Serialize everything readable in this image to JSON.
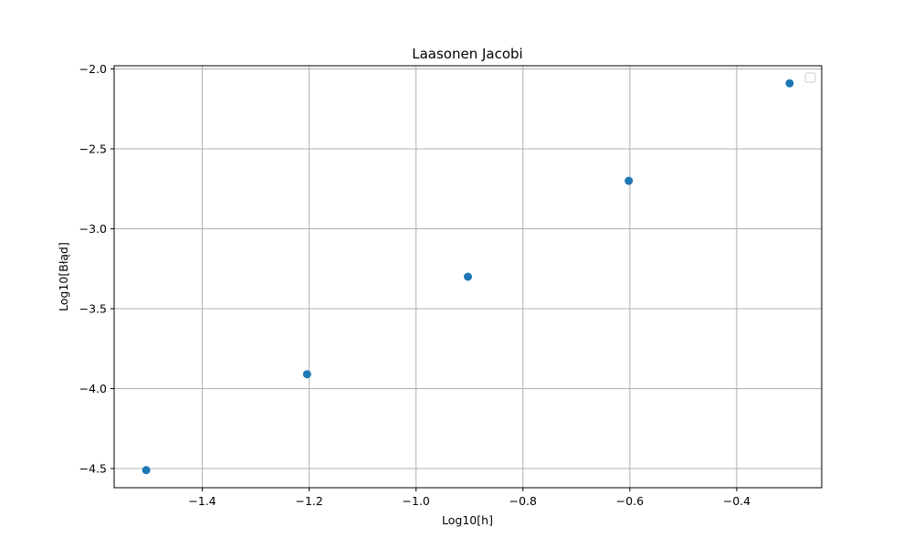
{
  "chart_data": {
    "type": "scatter",
    "title": "Laasonen Jacobi",
    "xlabel": "Log10[h]",
    "ylabel": "Log10[Błąd]",
    "x": [
      -1.505,
      -1.204,
      -0.903,
      -0.602,
      -0.301
    ],
    "y": [
      -4.51,
      -3.91,
      -3.3,
      -2.7,
      -2.09
    ],
    "xlim": [
      -1.565,
      -0.241
    ],
    "ylim": [
      -4.62,
      -1.98
    ],
    "xticks": [
      -1.4,
      -1.2,
      -1.0,
      -0.8,
      -0.6,
      -0.4
    ],
    "xtick_labels": [
      "−1.4",
      "−1.2",
      "−1.0",
      "−0.8",
      "−0.6",
      "−0.4"
    ],
    "yticks": [
      -4.5,
      -4.0,
      -3.5,
      -3.0,
      -2.5,
      -2.0
    ],
    "ytick_labels": [
      "−4.5",
      "−4.0",
      "−3.5",
      "−3.0",
      "−2.5",
      "−2.0"
    ],
    "grid": true,
    "legend": "top-right",
    "marker_color": "#1f77b4"
  }
}
